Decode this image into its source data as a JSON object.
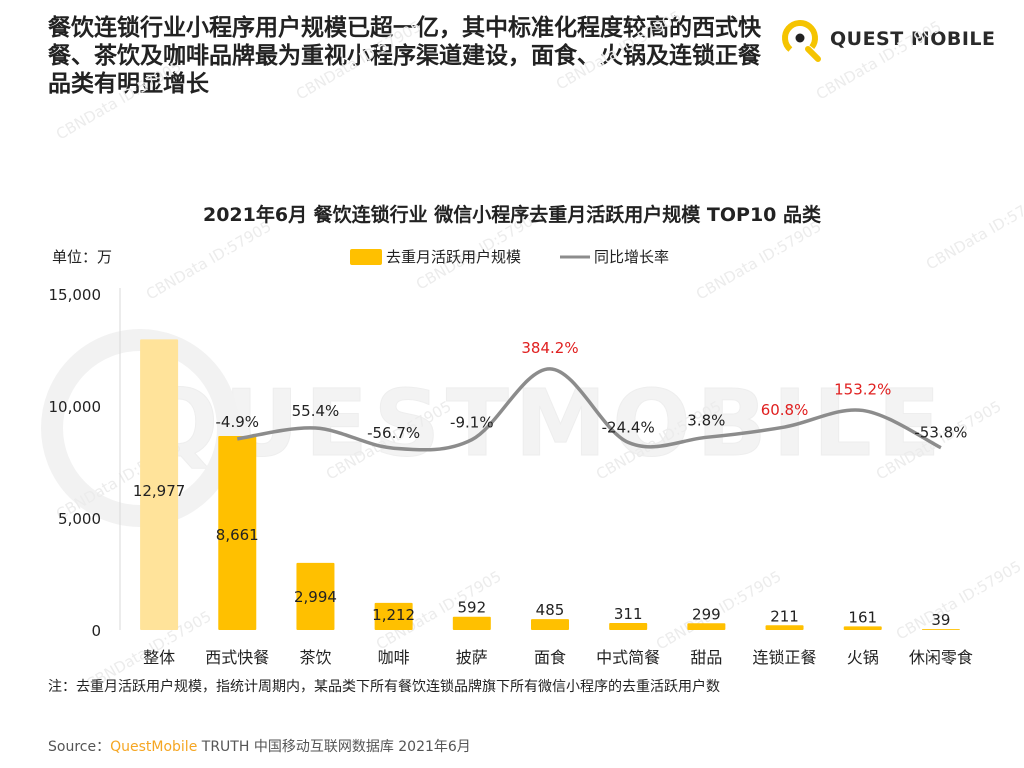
{
  "headline": "餐饮连锁行业小程序用户规模已超一亿，其中标准化程度较高的西式快餐、茶饮及咖啡品牌最为重视小程序渠道建设，面食、火锅及连锁正餐品类有明显增长",
  "logo": {
    "text": "QUEST MOBILE",
    "color": "#F5C400"
  },
  "watermark": {
    "text": "QUESTMOBILE",
    "stamp": "CBNData ID:57905"
  },
  "chart_data": {
    "type": "bar",
    "title": "2021年6月 餐饮连锁行业 微信小程序去重月活跃用户规模 TOP10 品类",
    "unit_label": "单位：万",
    "categories": [
      "整体",
      "西式快餐",
      "茶饮",
      "咖啡",
      "披萨",
      "面食",
      "中式简餐",
      "甜品",
      "连锁正餐",
      "火锅",
      "休闲零食"
    ],
    "series": [
      {
        "name": "去重月活跃用户规模",
        "type": "bar",
        "color": "#FFC000",
        "values": [
          12977,
          8661,
          2994,
          1212,
          592,
          485,
          311,
          299,
          211,
          161,
          39
        ],
        "labels": [
          "12,977",
          "8,661",
          "2,994",
          "1,212",
          "592",
          "485",
          "311",
          "299",
          "211",
          "161",
          "39"
        ]
      },
      {
        "name": "同比增长率",
        "type": "line",
        "color": "#8C8C8C",
        "values": [
          null,
          -4.9,
          55.4,
          -56.7,
          -9.1,
          384.2,
          -24.4,
          3.8,
          60.8,
          153.2,
          -53.8
        ],
        "labels": [
          "",
          "-4.9%",
          "55.4%",
          "-56.7%",
          "-9.1%",
          "384.2%",
          "-24.4%",
          "3.8%",
          "60.8%",
          "153.2%",
          "-53.8%"
        ],
        "highlight_color": "#E02020",
        "highlighted": [
          false,
          false,
          false,
          false,
          false,
          true,
          false,
          false,
          true,
          true,
          false
        ]
      }
    ],
    "ylim": [
      0,
      15000
    ],
    "yticks": [
      0,
      5000,
      10000,
      15000
    ],
    "ytick_labels": [
      "0",
      "5,000",
      "10,000",
      "15,000"
    ],
    "legend_position": "top-center"
  },
  "footnote": "注：去重月活跃用户规模，指统计周期内，某品类下所有餐饮连锁品牌旗下所有微信小程序的去重活跃用户数",
  "source": {
    "prefix": "Source：",
    "brand": "QuestMobile",
    "rest": " TRUTH 中国移动互联网数据库 2021年6月"
  }
}
